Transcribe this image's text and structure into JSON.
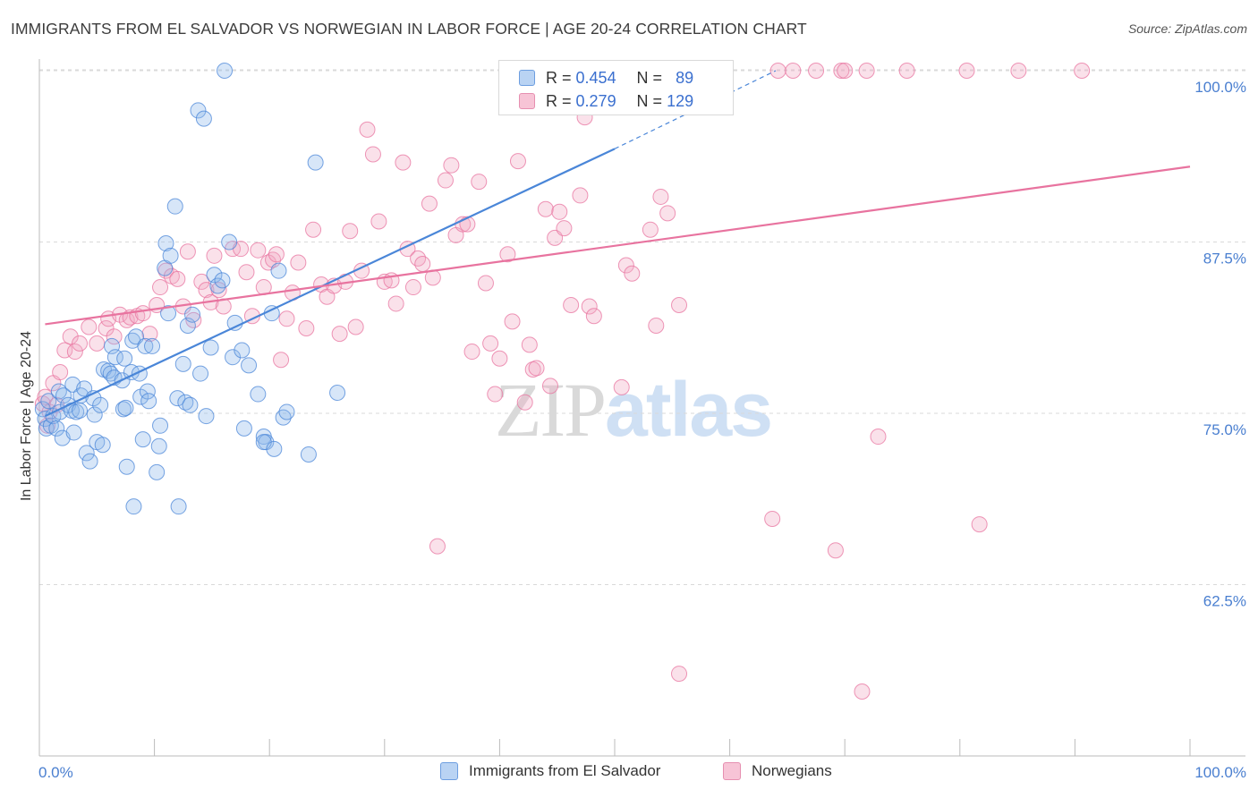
{
  "header": {
    "title": "IMMIGRANTS FROM EL SALVADOR VS NORWEGIAN IN LABOR FORCE | AGE 20-24 CORRELATION CHART",
    "source": "Source: ZipAtlas.com"
  },
  "watermark": {
    "zip": "ZIP",
    "atlas": "atlas"
  },
  "stats_legend": [
    {
      "r_label": "R =",
      "r_value": "0.454",
      "n_label": "N =",
      "n_value": "89",
      "fill": "#b9d3f3",
      "stroke": "#6d9ee0"
    },
    {
      "r_label": "R =",
      "r_value": "0.279",
      "n_label": "N =",
      "n_value": "129",
      "fill": "#f7c4d6",
      "stroke": "#e68fb0"
    }
  ],
  "bottom_legend": [
    {
      "label": "Immigrants from El Salvador",
      "fill": "#b9d3f3",
      "stroke": "#6d9ee0"
    },
    {
      "label": "Norwegians",
      "fill": "#f7c4d6",
      "stroke": "#e68fb0"
    }
  ],
  "chart_data": {
    "type": "scatter",
    "title": "IMMIGRANTS FROM EL SALVADOR VS NORWEGIAN IN LABOR FORCE | AGE 20-24 CORRELATION CHART",
    "xlabel": "",
    "ylabel": "In Labor Force | Age 20-24",
    "xlim": [
      0,
      100
    ],
    "ylim": [
      50,
      102.5
    ],
    "x_tick_labels": {
      "left": "0.0%",
      "right": "100.0%"
    },
    "y_ticks": [
      {
        "value": 100,
        "label": "100.0%"
      },
      {
        "value": 87.5,
        "label": "87.5%"
      },
      {
        "value": 75,
        "label": "75.0%"
      },
      {
        "value": 62.5,
        "label": "62.5%"
      }
    ],
    "grid": "horizontal dashed",
    "legend_position": "top-center",
    "colors": {
      "blue": "#4a86d8",
      "pink": "#e8739f",
      "tick_label": "#4a7fd0"
    },
    "series": [
      {
        "name": "Immigrants from El Salvador",
        "color": "#4a86d8",
        "fill": "rgba(140,182,235,0.35)",
        "trend": {
          "x": [
            0.5,
            50
          ],
          "y": [
            74.8,
            94.3
          ],
          "dashed_to": [
            64,
            100
          ]
        },
        "points": [
          [
            0.3,
            75.3
          ],
          [
            0.5,
            74.6
          ],
          [
            0.6,
            73.9
          ],
          [
            0.8,
            75.9
          ],
          [
            1.0,
            74.1
          ],
          [
            1.2,
            74.8
          ],
          [
            1.5,
            73.9
          ],
          [
            1.7,
            76.6
          ],
          [
            1.8,
            75.1
          ],
          [
            2.0,
            73.2
          ],
          [
            2.1,
            76.3
          ],
          [
            2.5,
            75.6
          ],
          [
            2.8,
            75.2
          ],
          [
            2.9,
            77.1
          ],
          [
            3.0,
            73.6
          ],
          [
            3.2,
            75.1
          ],
          [
            3.5,
            75.2
          ],
          [
            3.6,
            76.3
          ],
          [
            3.9,
            76.8
          ],
          [
            4.1,
            72.1
          ],
          [
            4.4,
            71.5
          ],
          [
            4.7,
            76.1
          ],
          [
            4.8,
            74.9
          ],
          [
            5.0,
            72.9
          ],
          [
            5.3,
            75.6
          ],
          [
            5.5,
            72.7
          ],
          [
            5.6,
            78.2
          ],
          [
            6.0,
            78.1
          ],
          [
            6.2,
            77.9
          ],
          [
            6.3,
            79.9
          ],
          [
            6.5,
            77.6
          ],
          [
            6.6,
            79.1
          ],
          [
            7.2,
            77.4
          ],
          [
            7.3,
            75.3
          ],
          [
            7.4,
            79.0
          ],
          [
            7.5,
            75.4
          ],
          [
            7.6,
            71.1
          ],
          [
            8.0,
            78.0
          ],
          [
            8.1,
            80.3
          ],
          [
            8.2,
            68.2
          ],
          [
            8.4,
            80.6
          ],
          [
            8.7,
            77.9
          ],
          [
            8.8,
            76.2
          ],
          [
            9.0,
            73.1
          ],
          [
            9.2,
            79.9
          ],
          [
            9.4,
            76.6
          ],
          [
            9.5,
            75.9
          ],
          [
            9.8,
            79.9
          ],
          [
            10.2,
            70.7
          ],
          [
            10.4,
            72.6
          ],
          [
            10.5,
            74.1
          ],
          [
            10.9,
            85.6
          ],
          [
            11.0,
            87.4
          ],
          [
            11.2,
            82.3
          ],
          [
            11.4,
            86.5
          ],
          [
            11.8,
            90.1
          ],
          [
            12.0,
            76.1
          ],
          [
            12.1,
            68.2
          ],
          [
            12.5,
            78.6
          ],
          [
            12.7,
            75.8
          ],
          [
            12.9,
            81.4
          ],
          [
            13.1,
            75.6
          ],
          [
            13.3,
            82.2
          ],
          [
            13.8,
            97.1
          ],
          [
            14.0,
            77.9
          ],
          [
            14.3,
            96.5
          ],
          [
            14.5,
            74.8
          ],
          [
            14.9,
            79.8
          ],
          [
            15.2,
            85.1
          ],
          [
            15.5,
            84.3
          ],
          [
            15.9,
            84.7
          ],
          [
            16.1,
            100.0
          ],
          [
            16.5,
            87.5
          ],
          [
            16.8,
            79.1
          ],
          [
            17.0,
            81.6
          ],
          [
            17.6,
            79.6
          ],
          [
            17.8,
            73.9
          ],
          [
            18.2,
            78.5
          ],
          [
            19.0,
            76.4
          ],
          [
            19.5,
            73.3
          ],
          [
            19.7,
            72.9
          ],
          [
            19.5,
            72.9
          ],
          [
            20.2,
            82.3
          ],
          [
            20.4,
            72.4
          ],
          [
            20.8,
            85.4
          ],
          [
            21.2,
            74.7
          ],
          [
            21.5,
            75.1
          ],
          [
            23.4,
            72.0
          ],
          [
            24.0,
            93.3
          ],
          [
            25.9,
            76.5
          ]
        ]
      },
      {
        "name": "Norwegians",
        "color": "#e8739f",
        "fill": "rgba(242,170,196,0.35)",
        "trend": {
          "x": [
            0.5,
            100
          ],
          "y": [
            81.5,
            93.0
          ]
        },
        "points": [
          [
            0.3,
            75.7
          ],
          [
            0.5,
            76.2
          ],
          [
            0.7,
            74.1
          ],
          [
            0.9,
            75.1
          ],
          [
            1.2,
            77.2
          ],
          [
            1.5,
            75.6
          ],
          [
            1.8,
            78.0
          ],
          [
            2.2,
            79.6
          ],
          [
            2.7,
            80.6
          ],
          [
            3.1,
            79.5
          ],
          [
            3.5,
            80.1
          ],
          [
            4.3,
            81.3
          ],
          [
            5.0,
            80.1
          ],
          [
            5.8,
            81.2
          ],
          [
            6.0,
            81.9
          ],
          [
            6.5,
            80.6
          ],
          [
            7.0,
            82.2
          ],
          [
            7.6,
            81.8
          ],
          [
            7.9,
            82.0
          ],
          [
            8.5,
            82.1
          ],
          [
            9.0,
            82.3
          ],
          [
            9.6,
            80.8
          ],
          [
            10.2,
            82.9
          ],
          [
            10.5,
            84.2
          ],
          [
            11.0,
            85.4
          ],
          [
            11.5,
            85.0
          ],
          [
            12.0,
            84.8
          ],
          [
            12.5,
            82.8
          ],
          [
            12.9,
            86.8
          ],
          [
            13.4,
            81.8
          ],
          [
            14.1,
            84.6
          ],
          [
            14.5,
            84.0
          ],
          [
            14.9,
            83.1
          ],
          [
            15.2,
            86.5
          ],
          [
            15.6,
            84.0
          ],
          [
            16.0,
            82.8
          ],
          [
            16.8,
            87.0
          ],
          [
            17.5,
            87.0
          ],
          [
            18.0,
            85.3
          ],
          [
            18.5,
            82.1
          ],
          [
            19.0,
            86.9
          ],
          [
            19.5,
            84.2
          ],
          [
            19.9,
            86.0
          ],
          [
            20.3,
            86.2
          ],
          [
            20.6,
            86.6
          ],
          [
            21.0,
            78.9
          ],
          [
            21.5,
            81.9
          ],
          [
            22.0,
            83.8
          ],
          [
            22.5,
            86.0
          ],
          [
            23.2,
            81.2
          ],
          [
            23.8,
            88.4
          ],
          [
            24.5,
            84.4
          ],
          [
            25.0,
            83.5
          ],
          [
            25.6,
            84.3
          ],
          [
            26.1,
            80.8
          ],
          [
            26.6,
            84.6
          ],
          [
            27.0,
            88.3
          ],
          [
            27.5,
            81.3
          ],
          [
            28.0,
            85.4
          ],
          [
            28.5,
            95.7
          ],
          [
            29.0,
            93.9
          ],
          [
            29.5,
            89.0
          ],
          [
            30.0,
            84.6
          ],
          [
            30.6,
            84.7
          ],
          [
            31.0,
            83.0
          ],
          [
            31.6,
            93.3
          ],
          [
            32.0,
            87.0
          ],
          [
            32.5,
            84.2
          ],
          [
            32.9,
            86.3
          ],
          [
            33.3,
            85.9
          ],
          [
            33.9,
            90.3
          ],
          [
            34.2,
            84.9
          ],
          [
            34.6,
            65.3
          ],
          [
            35.3,
            92.0
          ],
          [
            35.8,
            93.1
          ],
          [
            36.2,
            88.0
          ],
          [
            36.8,
            88.8
          ],
          [
            37.2,
            88.8
          ],
          [
            37.6,
            79.5
          ],
          [
            38.2,
            91.9
          ],
          [
            38.8,
            84.5
          ],
          [
            39.2,
            80.1
          ],
          [
            39.6,
            76.4
          ],
          [
            40.0,
            79.0
          ],
          [
            40.7,
            86.6
          ],
          [
            41.1,
            81.7
          ],
          [
            41.6,
            93.4
          ],
          [
            42.2,
            75.8
          ],
          [
            42.6,
            80.0
          ],
          [
            42.9,
            78.2
          ],
          [
            43.2,
            78.3
          ],
          [
            44.0,
            89.9
          ],
          [
            44.4,
            77.0
          ],
          [
            44.8,
            87.8
          ],
          [
            45.2,
            89.7
          ],
          [
            45.6,
            88.5
          ],
          [
            46.2,
            82.9
          ],
          [
            47.0,
            90.9
          ],
          [
            47.4,
            96.6
          ],
          [
            47.8,
            82.8
          ],
          [
            48.2,
            82.1
          ],
          [
            48.6,
            100.0
          ],
          [
            49.4,
            100.0
          ],
          [
            50.6,
            76.9
          ],
          [
            51.0,
            85.8
          ],
          [
            51.5,
            85.2
          ],
          [
            53.1,
            88.4
          ],
          [
            53.6,
            81.4
          ],
          [
            54.0,
            90.8
          ],
          [
            54.6,
            89.6
          ],
          [
            55.6,
            82.9
          ],
          [
            55.6,
            56.0
          ],
          [
            58.6,
            100.0
          ],
          [
            59.0,
            100.0
          ],
          [
            63.7,
            67.3
          ],
          [
            64.2,
            100.0
          ],
          [
            65.5,
            100.0
          ],
          [
            67.5,
            100.0
          ],
          [
            69.2,
            65.0
          ],
          [
            69.7,
            100.0
          ],
          [
            70.0,
            100.0
          ],
          [
            71.5,
            54.7
          ],
          [
            71.9,
            100.0
          ],
          [
            72.9,
            73.3
          ],
          [
            75.4,
            100.0
          ],
          [
            80.6,
            100.0
          ],
          [
            81.7,
            66.9
          ],
          [
            85.1,
            100.0
          ],
          [
            90.6,
            100.0
          ]
        ]
      }
    ]
  }
}
